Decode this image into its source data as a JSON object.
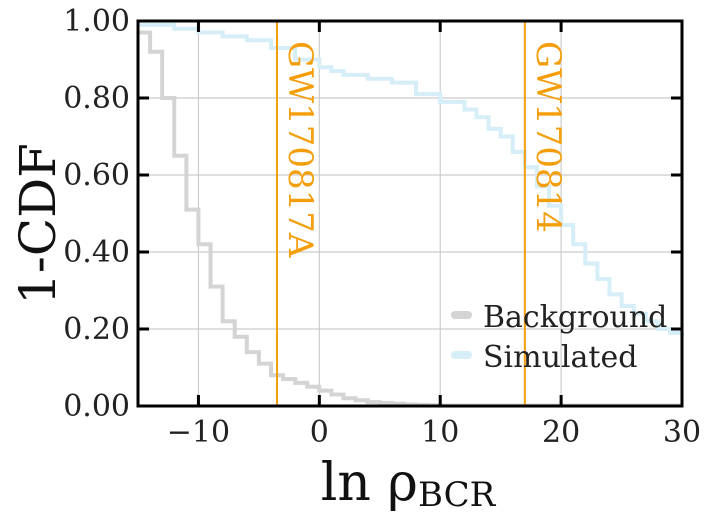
{
  "chart_data": {
    "type": "line",
    "xlabel": "ln ρBCR",
    "xlabel_main": "ln ρ",
    "xlabel_sub": "BCR",
    "ylabel": "1-CDF",
    "xlim": [
      -15,
      30
    ],
    "ylim": [
      0,
      1
    ],
    "x_ticks": [
      -10,
      0,
      10,
      20,
      30
    ],
    "x_tick_labels": [
      "−10",
      "0",
      "10",
      "20",
      "30"
    ],
    "y_ticks": [
      0,
      0.2,
      0.4,
      0.6,
      0.8,
      1.0
    ],
    "y_tick_labels": [
      "0.00",
      "0.20",
      "0.40",
      "0.60",
      "0.80",
      "1.00"
    ],
    "grid": true,
    "legend_position": "bottom-right",
    "series": [
      {
        "name": "Background",
        "color": "#d4d4d4",
        "style": "step",
        "x": [
          -15,
          -14,
          -13,
          -12,
          -11,
          -10,
          -9,
          -8,
          -7,
          -6,
          -5,
          -4,
          -3,
          -2,
          -1,
          0,
          1,
          2,
          3,
          4,
          5,
          6,
          7,
          8,
          9,
          10
        ],
        "y": [
          0.97,
          0.92,
          0.8,
          0.65,
          0.51,
          0.42,
          0.31,
          0.22,
          0.18,
          0.14,
          0.11,
          0.08,
          0.07,
          0.06,
          0.05,
          0.04,
          0.03,
          0.02,
          0.015,
          0.01,
          0.008,
          0.006,
          0.004,
          0.003,
          0.002,
          0.001
        ]
      },
      {
        "name": "Simulated",
        "color": "#d5eef7",
        "style": "step",
        "x": [
          -15,
          -12,
          -10,
          -8,
          -6,
          -4,
          -2,
          0,
          1,
          2,
          4,
          6,
          8,
          10,
          12,
          13,
          14,
          15,
          16,
          17,
          18,
          19,
          20,
          21,
          22,
          23,
          24,
          25,
          26,
          27,
          28,
          29,
          30
        ],
        "y": [
          0.99,
          0.98,
          0.97,
          0.96,
          0.95,
          0.93,
          0.9,
          0.88,
          0.87,
          0.86,
          0.85,
          0.84,
          0.81,
          0.79,
          0.77,
          0.75,
          0.72,
          0.7,
          0.66,
          0.62,
          0.57,
          0.52,
          0.47,
          0.42,
          0.37,
          0.33,
          0.29,
          0.26,
          0.24,
          0.22,
          0.2,
          0.19,
          0.18
        ]
      }
    ],
    "vlines": [
      {
        "x": -3.5,
        "label": "GW170817A",
        "color": "#f59e0b"
      },
      {
        "x": 17.0,
        "label": "GW170814",
        "color": "#f59e0b"
      }
    ]
  }
}
